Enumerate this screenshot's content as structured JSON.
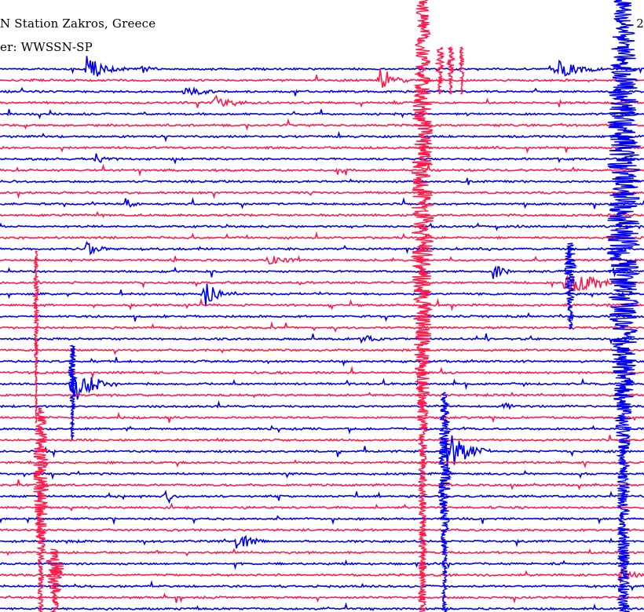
{
  "header": {
    "station_text": "N Station Zakros, Greece",
    "filter_text": "er: WWSSN-SP",
    "corner_text": "2"
  },
  "colors": {
    "trace_a": "#ff1a4a",
    "trace_b": "#0000ee",
    "background": "#ffffff",
    "text": "#000000"
  }
}
